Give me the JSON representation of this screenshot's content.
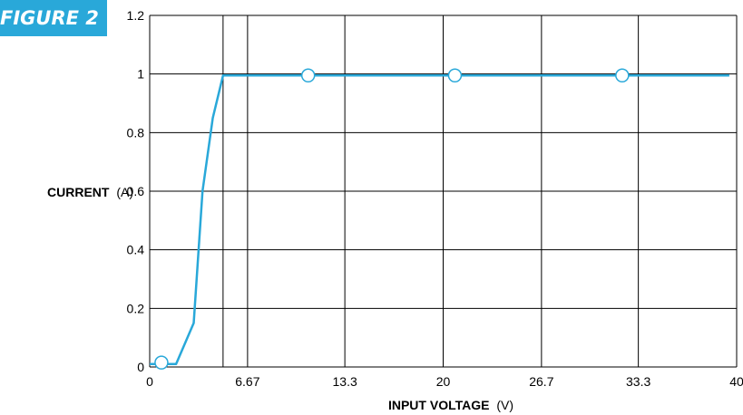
{
  "figure_label": "FIGURE 2",
  "chart_data": {
    "type": "line",
    "title": "",
    "xlabel_bold": "INPUT VOLTAGE",
    "xlabel_unit": "(V)",
    "ylabel_bold": "CURRENT",
    "ylabel_unit": "(A)",
    "xlim": [
      0,
      40
    ],
    "ylim": [
      0,
      1.2
    ],
    "x_ticks": [
      0,
      6.67,
      13.3,
      20,
      26.7,
      33.3,
      40
    ],
    "x_tick_labels": [
      "0",
      "6.67",
      "13.3",
      "20",
      "26.7",
      "33.3",
      "40"
    ],
    "y_ticks": [
      0,
      0.2,
      0.4,
      0.6,
      0.8,
      1,
      1.2
    ],
    "y_tick_labels": [
      "0",
      "0.2",
      "0.4",
      "0.6",
      "0.8",
      "1",
      "1.2"
    ],
    "extra_vlines_x": [
      5
    ],
    "grid": true,
    "line_color": "#29a8d9",
    "series": [
      {
        "x": [
          0,
          1.8,
          3,
          3.6,
          4.3,
          5,
          39.5
        ],
        "y": [
          0.01,
          0.01,
          0.15,
          0.6,
          0.85,
          0.995,
          0.995
        ]
      }
    ],
    "markers": {
      "x": [
        0.8,
        10.8,
        20.8,
        32.2
      ],
      "y": [
        0.015,
        0.995,
        0.995,
        0.995
      ]
    }
  }
}
